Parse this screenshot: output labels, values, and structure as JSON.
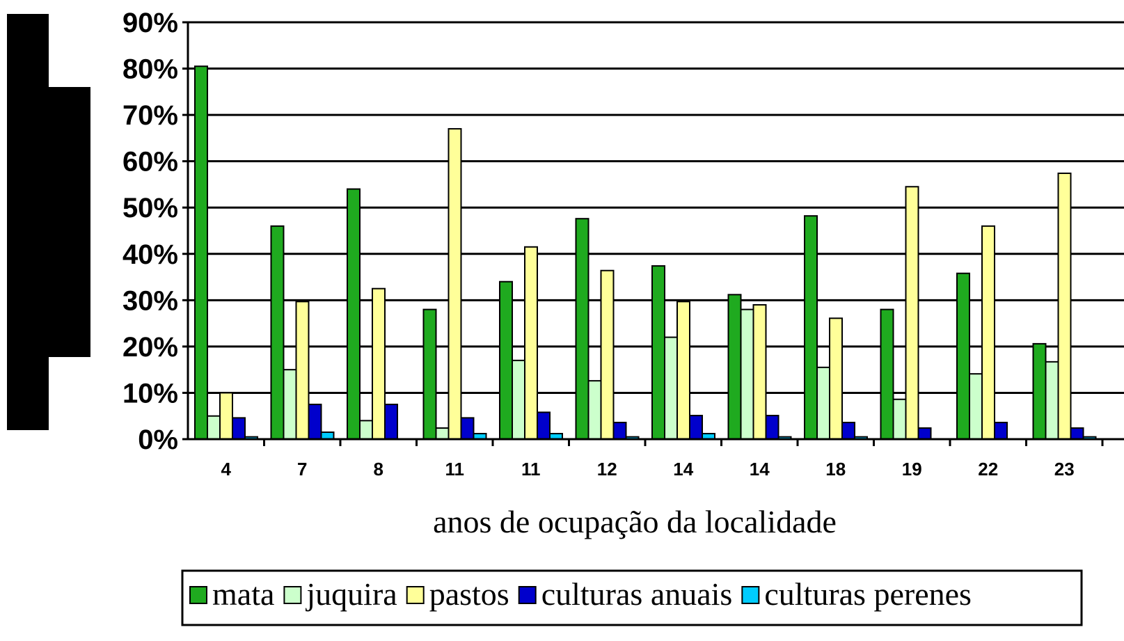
{
  "chart_data": {
    "type": "bar",
    "x_label": "anos de ocupação da localidade",
    "categories": [
      "4",
      "7",
      "8",
      "11",
      "11",
      "12",
      "14",
      "14",
      "18",
      "19",
      "22",
      "23"
    ],
    "series": [
      {
        "name": "mata",
        "color": "#1faa1f",
        "values": [
          80.5,
          46,
          54,
          28,
          34,
          47.6,
          37.4,
          31.2,
          48.2,
          28,
          35.8,
          20.6
        ]
      },
      {
        "name": "juquira",
        "color": "#ccffcc",
        "values": [
          5,
          15,
          4,
          2.4,
          17,
          12.6,
          22,
          28,
          15.5,
          8.6,
          14.1,
          16.7
        ]
      },
      {
        "name": "pastos",
        "color": "#ffff99",
        "values": [
          10,
          29.7,
          32.5,
          67,
          41.5,
          36.4,
          29.7,
          29,
          26.1,
          54.5,
          46,
          57.4
        ]
      },
      {
        "name": "culturas anuais",
        "color": "#0000cc",
        "values": [
          4.6,
          7.5,
          7.5,
          4.6,
          5.8,
          3.6,
          5.1,
          5.1,
          3.6,
          2.4,
          3.6,
          2.4
        ]
      },
      {
        "name": "culturas perenes",
        "color": "#00ccff",
        "values": [
          0.5,
          1.5,
          0,
          1.2,
          1.2,
          0.5,
          1.2,
          0.5,
          0.5,
          0,
          0,
          0.5
        ]
      }
    ],
    "ylim": [
      0,
      90
    ],
    "yticks": [
      {
        "value": 0,
        "label": "0%"
      },
      {
        "value": 10,
        "label": "10%"
      },
      {
        "value": 20,
        "label": "20%"
      },
      {
        "value": 30,
        "label": "30%"
      },
      {
        "value": 40,
        "label": "40%"
      },
      {
        "value": 50,
        "label": "50%"
      },
      {
        "value": 60,
        "label": "60%"
      },
      {
        "value": 70,
        "label": "70%"
      },
      {
        "value": 80,
        "label": "80%"
      },
      {
        "value": 90,
        "label": "90%"
      }
    ],
    "grid": true,
    "legend": "bottom"
  }
}
